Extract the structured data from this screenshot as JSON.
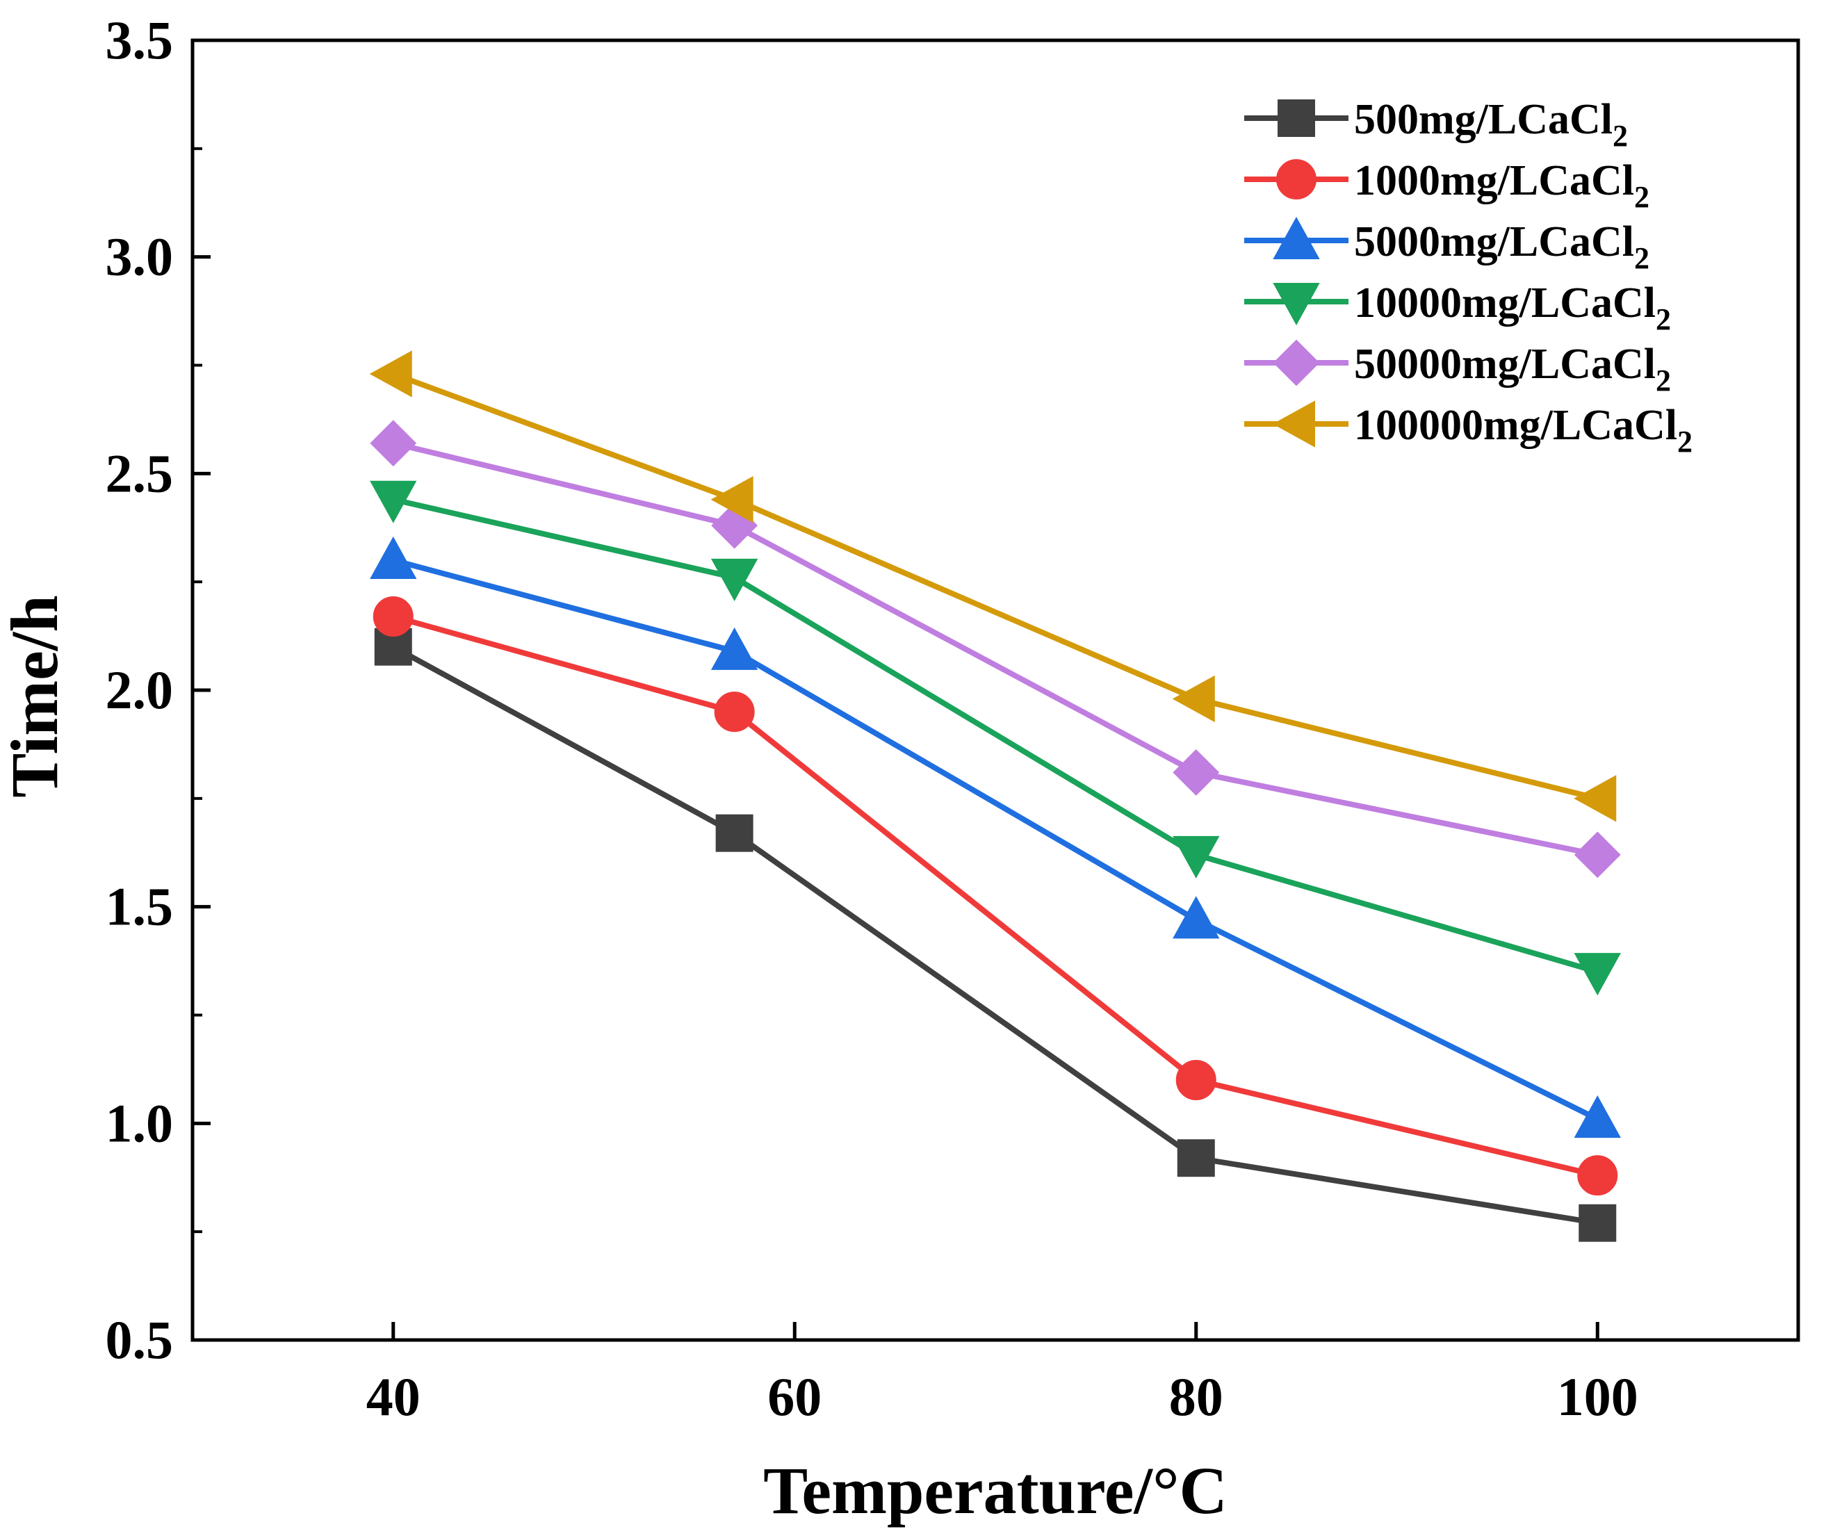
{
  "chart_data": {
    "type": "line",
    "title": "",
    "xlabel": "Temperature/°C",
    "ylabel": "Time/h",
    "xlim": [
      30,
      110
    ],
    "ylim": [
      0.5,
      3.5
    ],
    "xticks": [
      40,
      60,
      80,
      100
    ],
    "yticks": [
      0.5,
      1.0,
      1.5,
      2.0,
      2.5,
      3.0,
      3.5
    ],
    "xtick_labels": [
      "40",
      "60",
      "80",
      "100"
    ],
    "ytick_labels": [
      "0.5",
      "1.0",
      "1.5",
      "2.0",
      "2.5",
      "3.0",
      "3.5"
    ],
    "grid": false,
    "legend_position": "top-right",
    "x": [
      40,
      57,
      80,
      100
    ],
    "series": [
      {
        "name": "500mg/LCaCl2",
        "label_main": "500mg/LCaCl",
        "label_sub": "2",
        "color": "#404040",
        "marker": "square",
        "values": [
          2.1,
          1.67,
          0.92,
          0.77
        ]
      },
      {
        "name": "1000mg/LCaCl2",
        "label_main": "1000mg/LCaCl",
        "label_sub": "2",
        "color": "#f03a3a",
        "marker": "circle",
        "values": [
          2.17,
          1.95,
          1.1,
          0.88
        ]
      },
      {
        "name": "5000mg/LCaCl2",
        "label_main": "5000mg/LCaCl",
        "label_sub": "2",
        "color": "#1f6fe0",
        "marker": "triangle-up",
        "values": [
          2.3,
          2.09,
          1.47,
          1.01
        ]
      },
      {
        "name": "10000mg/LCaCl2",
        "label_main": "10000mg/LCaCl",
        "label_sub": "2",
        "color": "#1aa35a",
        "marker": "triangle-down",
        "values": [
          2.44,
          2.26,
          1.62,
          1.35
        ]
      },
      {
        "name": "50000mg/LCaCl2",
        "label_main": "50000mg/LCaCl",
        "label_sub": "2",
        "color": "#c07ee0",
        "marker": "diamond",
        "values": [
          2.57,
          2.38,
          1.81,
          1.62
        ]
      },
      {
        "name": "100000mg/LCaCl2",
        "label_main": "100000mg/LCaCl",
        "label_sub": "2",
        "color": "#d49a0a",
        "marker": "triangle-left",
        "values": [
          2.73,
          2.44,
          1.98,
          1.75
        ]
      }
    ]
  }
}
